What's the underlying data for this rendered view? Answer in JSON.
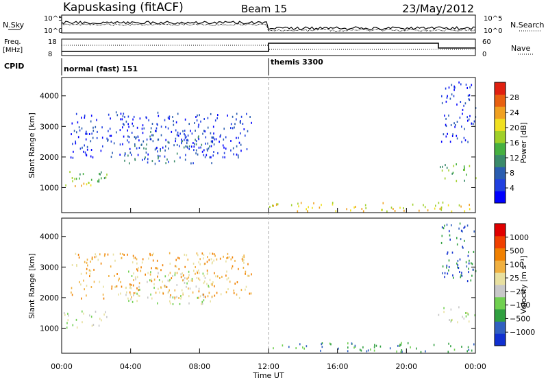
{
  "header": {
    "station": "Kapuskasing (fitACF)",
    "beam": "Beam 15",
    "date": "23/May/2012"
  },
  "side_labels": {
    "nsky": "N.Sky",
    "nsearch": "N.Search",
    "freq_line1": "Freq.",
    "freq_line2": "[MHz]",
    "nave": "Nave",
    "cpid": "CPID"
  },
  "small_axes": {
    "noise_left": [
      "10^5",
      "10^0"
    ],
    "noise_right": [
      "10^5",
      "10^0"
    ],
    "freq_left": [
      "18",
      "8"
    ],
    "freq_right": [
      "60",
      "0"
    ]
  },
  "cpid_segments": [
    {
      "label": "normal (fast) 151",
      "start_hour": 0,
      "end_hour": 12
    },
    {
      "label": "themis 3300",
      "start_hour": 12,
      "end_hour": 24
    }
  ],
  "colors": {
    "power": [
      "#0000ff",
      "#2040e0",
      "#2a5db0",
      "#3a8a6a",
      "#46b040",
      "#a0d028",
      "#f0e020",
      "#f0a020",
      "#e86010",
      "#e02010"
    ],
    "velocity": [
      "#e00000",
      "#f04000",
      "#f08000",
      "#f0b040",
      "#e8e0a0",
      "#c8c8c8",
      "#70d050",
      "#30a040",
      "#3060c0",
      "#1030d0"
    ]
  },
  "chart_data": [
    {
      "type": "heatmap",
      "name": "power",
      "ylabel": "Slant Range [km]",
      "xlabel": "Time UT",
      "xlim": [
        0,
        24
      ],
      "ylim": [
        180,
        4600
      ],
      "x_ticks": [
        "00:00",
        "04:00",
        "08:00",
        "12:00",
        "16:00",
        "20:00",
        "00:00"
      ],
      "y_ticks": [
        1000,
        2000,
        3000,
        4000
      ],
      "colorbar": {
        "label": "Power [dB]",
        "ticks": [
          "4",
          "8",
          "12",
          "16",
          "20",
          "24",
          "28"
        ]
      },
      "regions": [
        {
          "t0": 0.0,
          "t1": 2.6,
          "r0": 1150,
          "r1": 1600,
          "level": 4
        },
        {
          "t0": 0.2,
          "t1": 2.4,
          "r0": 1050,
          "r1": 1250,
          "level": 6
        },
        {
          "t0": 3.6,
          "t1": 8.8,
          "r0": 1800,
          "r1": 2900,
          "level": 2
        },
        {
          "t0": 0.5,
          "t1": 11.0,
          "r0": 2000,
          "r1": 3500,
          "level": 1
        },
        {
          "t0": 12.0,
          "t1": 24.0,
          "r0": 250,
          "r1": 550,
          "level": 6
        },
        {
          "t0": 21.8,
          "t1": 24.0,
          "r0": 1250,
          "r1": 1800,
          "level": 4
        },
        {
          "t0": 22.0,
          "t1": 24.0,
          "r0": 2500,
          "r1": 4500,
          "level": 1
        }
      ]
    },
    {
      "type": "heatmap",
      "name": "velocity",
      "ylabel": "Slant Range [km]",
      "xlabel": "Time UT",
      "xlim": [
        0,
        24
      ],
      "ylim": [
        180,
        4600
      ],
      "x_ticks": [
        "00:00",
        "04:00",
        "08:00",
        "12:00",
        "16:00",
        "20:00",
        "00:00"
      ],
      "y_ticks": [
        1000,
        2000,
        3000,
        4000
      ],
      "colorbar": {
        "label": "Velocity [m s⁻¹]",
        "ticks": [
          "1000",
          "500",
          "100",
          "25",
          "−25",
          "−100",
          "−500",
          "−1000"
        ]
      },
      "regions": [
        {
          "t0": 0.0,
          "t1": 2.6,
          "r0": 1050,
          "r1": 1600,
          "level": 5
        },
        {
          "t0": 3.6,
          "t1": 8.8,
          "r0": 1800,
          "r1": 2900,
          "level": 5
        },
        {
          "t0": 0.5,
          "t1": 11.0,
          "r0": 2000,
          "r1": 3500,
          "level": 3
        },
        {
          "t0": 12.0,
          "t1": 24.0,
          "r0": 250,
          "r1": 550,
          "level": 7
        },
        {
          "t0": 21.8,
          "t1": 24.0,
          "r0": 1200,
          "r1": 1750,
          "level": 5
        },
        {
          "t0": 22.0,
          "t1": 24.0,
          "r0": 2500,
          "r1": 4500,
          "level": 8
        }
      ]
    }
  ]
}
